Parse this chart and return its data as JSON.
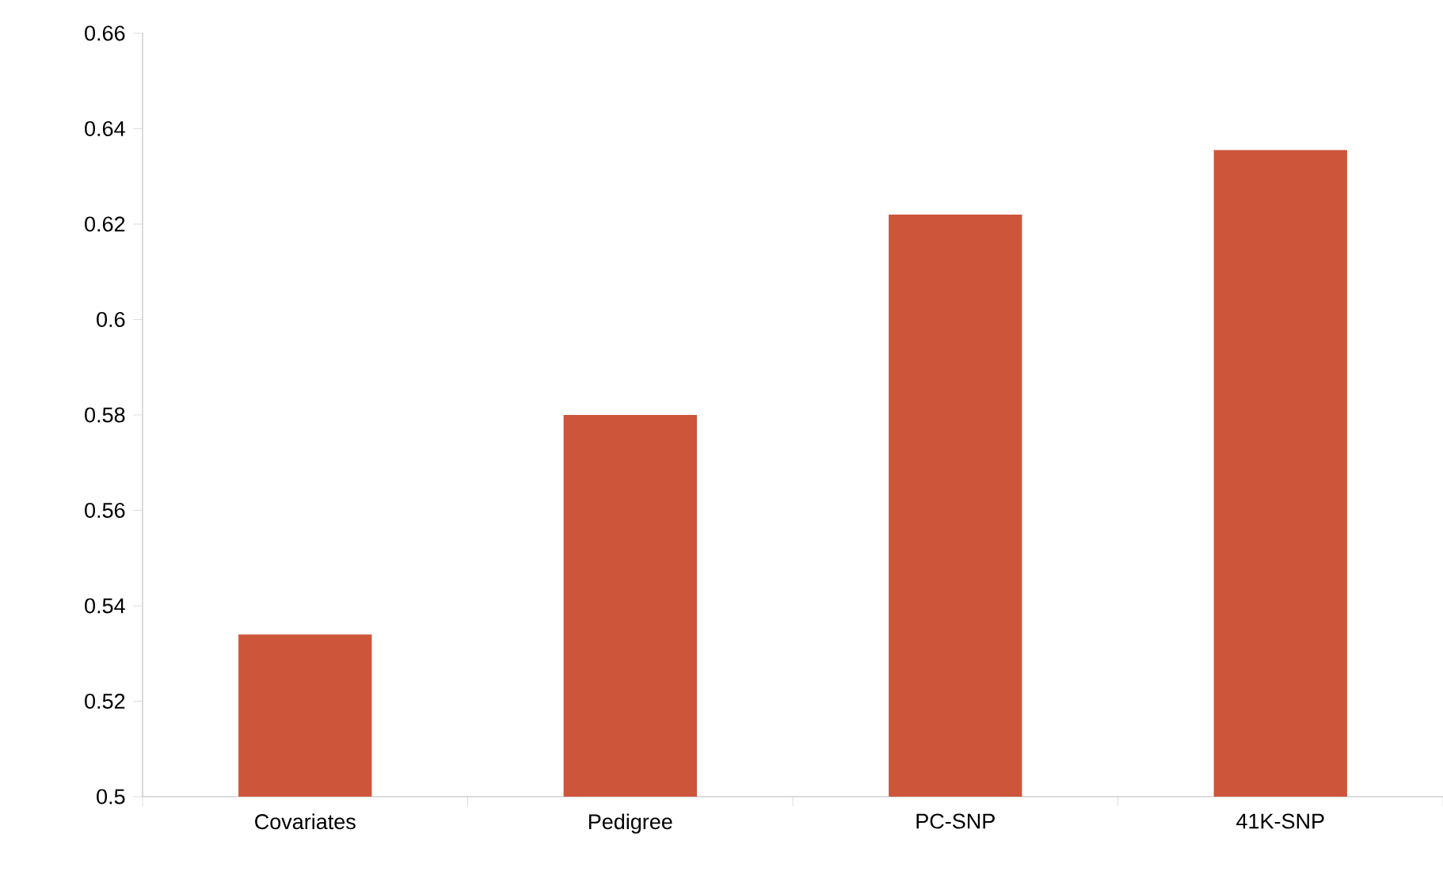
{
  "chart_data": {
    "type": "bar",
    "categories": [
      "Covariates",
      "Pedigree",
      "PC-SNP",
      "41K-SNP"
    ],
    "values": [
      0.534,
      0.58,
      0.622,
      0.6355
    ],
    "color": "#cd553a",
    "ylim": [
      0.5,
      0.66
    ],
    "yticks": [
      0.5,
      0.52,
      0.54,
      0.56,
      0.58,
      0.6,
      0.62,
      0.64,
      0.66
    ],
    "grid": false
  }
}
